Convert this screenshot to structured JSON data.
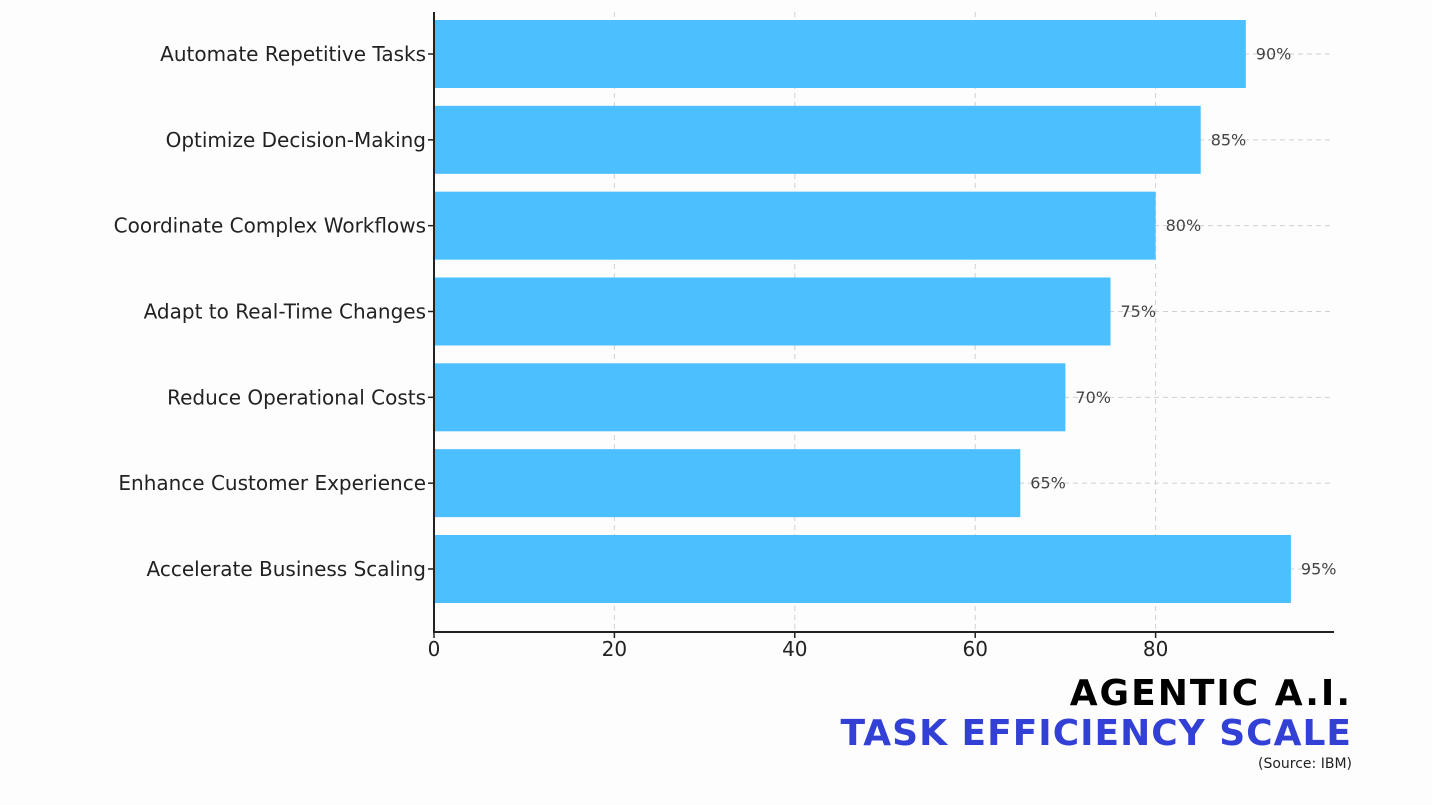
{
  "chart_data": {
    "type": "bar",
    "orientation": "horizontal",
    "categories": [
      "Automate Repetitive Tasks",
      "Optimize Decision-Making",
      "Coordinate Complex Workflows",
      "Adapt to Real-Time Changes",
      "Reduce Operational Costs",
      "Enhance Customer Experience",
      "Accelerate Business Scaling"
    ],
    "values": [
      90,
      85,
      80,
      75,
      70,
      65,
      95
    ],
    "value_labels": [
      "90%",
      "85%",
      "80%",
      "75%",
      "70%",
      "65%",
      "95%"
    ],
    "x_ticks": [
      0,
      20,
      40,
      60,
      80
    ],
    "xlim": [
      0,
      100
    ],
    "xlabel": "",
    "ylabel": "",
    "grid": true,
    "legend": "none",
    "bar_color": "#4bbfff"
  },
  "caption": {
    "title": "AGENTIC A.I.",
    "subtitle": "TASK EFFICIENCY SCALE",
    "source": "(Source: IBM)",
    "title_color": "#000000",
    "subtitle_color": "#3340d6"
  }
}
